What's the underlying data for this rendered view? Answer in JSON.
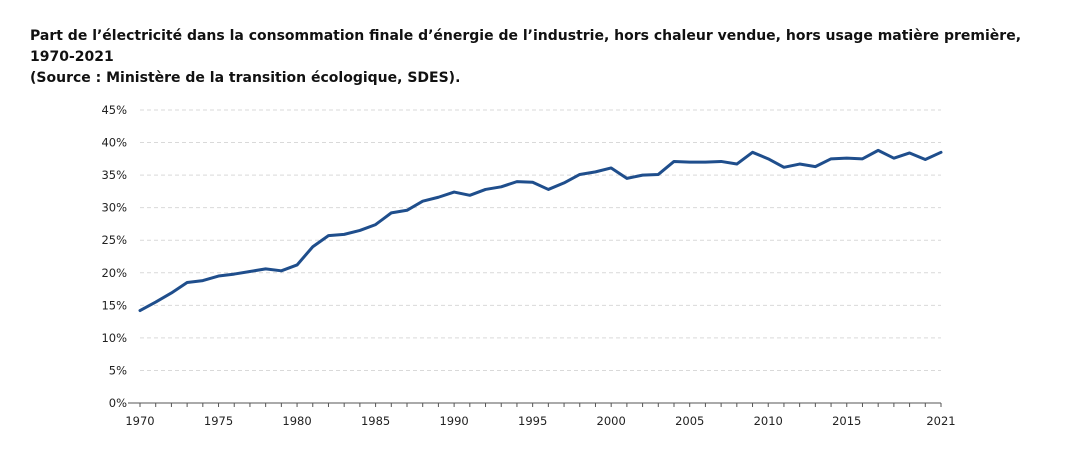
{
  "title_line1": "Part de l’électricité dans la consommation finale d’énergie de l’industrie, hors chaleur vendue, hors usage matière première, 1970-2021",
  "title_line2": "(Source : Ministère de la transition écologique, SDES).",
  "chart_data": {
    "type": "line",
    "title": "Part de l’électricité dans la consommation finale d’énergie de l’industrie, hors chaleur vendue, hors usage matière première, 1970-2021 (Source : Ministère de la transition écologique, SDES).",
    "xlabel": "",
    "ylabel": "",
    "xlim": [
      1970,
      2021
    ],
    "ylim": [
      0,
      45
    ],
    "grid": "horizontal-dashed",
    "legend": "none",
    "line_color": "#1f4e8c",
    "x_ticks": [
      1970,
      1975,
      1980,
      1985,
      1990,
      1995,
      2000,
      2005,
      2010,
      2015,
      2021
    ],
    "x_tick_labels": [
      "1970",
      "1975",
      "1980",
      "1985",
      "1990",
      "1995",
      "2000",
      "2005",
      "2010",
      "2015",
      "2021"
    ],
    "y_ticks": [
      0,
      5,
      10,
      15,
      20,
      25,
      30,
      35,
      40,
      45
    ],
    "y_tick_labels": [
      "0%",
      "5%",
      "10%",
      "15%",
      "20%",
      "25%",
      "30%",
      "35%",
      "40%",
      "45%"
    ],
    "series": [
      {
        "x": [
          1970,
          1971,
          1972,
          1973,
          1974,
          1975,
          1976,
          1977,
          1978,
          1979,
          1980,
          1981,
          1982,
          1983,
          1984,
          1985,
          1986,
          1987,
          1988,
          1989,
          1990,
          1991,
          1992,
          1993,
          1994,
          1995,
          1996,
          1997,
          1998,
          1999,
          2000,
          2001,
          2002,
          2003,
          2004,
          2005,
          2006,
          2007,
          2008,
          2009,
          2010,
          2011,
          2012,
          2013,
          2014,
          2015,
          2016,
          2017,
          2018,
          2019,
          2020,
          2021
        ],
        "values": [
          14.2,
          15.5,
          16.9,
          18.5,
          18.8,
          19.5,
          19.8,
          20.2,
          20.6,
          20.3,
          21.2,
          24.0,
          25.7,
          25.9,
          26.5,
          27.4,
          29.2,
          29.6,
          31.0,
          31.6,
          32.4,
          31.9,
          32.8,
          33.2,
          34.0,
          33.9,
          32.8,
          33.8,
          35.1,
          35.5,
          36.1,
          34.5,
          35.0,
          35.1,
          37.1,
          37.0,
          37.0,
          37.1,
          36.7,
          38.5,
          37.5,
          36.2,
          36.7,
          36.3,
          37.5,
          37.6,
          37.5,
          38.8,
          37.6,
          38.4,
          37.4,
          38.5
        ]
      }
    ]
  }
}
